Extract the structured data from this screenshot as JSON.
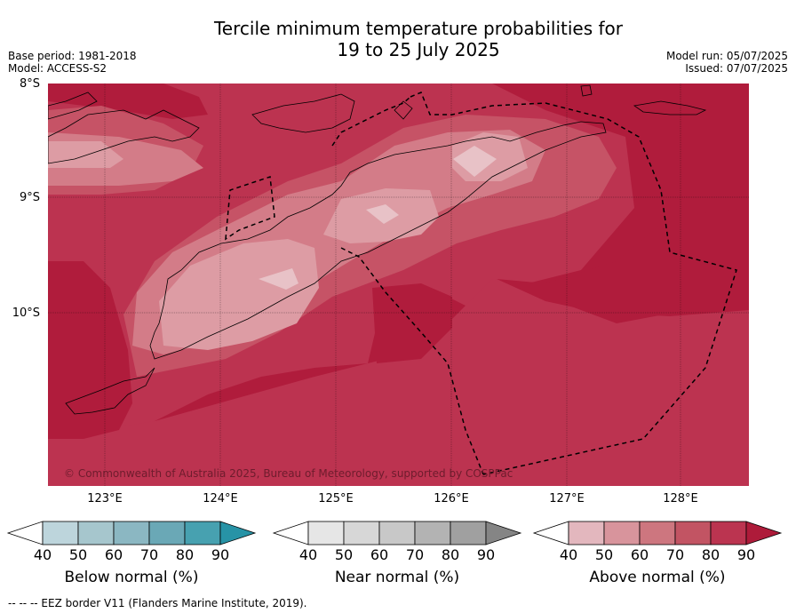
{
  "title": {
    "line1": "Tercile minimum temperature probabilities for",
    "line2": "19 to 25 July 2025"
  },
  "meta": {
    "base_period": "Base period: 1981-2018",
    "model": "Model: ACCESS-S2",
    "model_run": "Model run: 05/07/2025",
    "issued": "Issued: 07/07/2025"
  },
  "map": {
    "lat_labels": [
      "8°S",
      "9°S",
      "10°S"
    ],
    "lon_labels": [
      "123°E",
      "124°E",
      "125°E",
      "126°E",
      "127°E",
      "128°E"
    ],
    "copyright": "© Commonwealth of Australia 2025, Bureau of Meteorology, supported by COSPPac",
    "background_color": "#b01c3c",
    "shading_colors": [
      "#b01c3c",
      "#bc3350",
      "#c65366",
      "#d37c88",
      "#dd9ca4",
      "#e8c2c7"
    ]
  },
  "legend": {
    "below": {
      "label": "Below normal (%)",
      "ticks": [
        "40",
        "50",
        "60",
        "70",
        "80",
        "90"
      ],
      "colors": [
        "#ffffff",
        "#bdd5dc",
        "#a6c6cd",
        "#8bb7c2",
        "#6aa8b6",
        "#47a1b0",
        "#2793a6"
      ]
    },
    "near": {
      "label": "Near normal (%)",
      "ticks": [
        "40",
        "50",
        "60",
        "70",
        "80",
        "90"
      ],
      "colors": [
        "#ffffff",
        "#e6e6e6",
        "#d7d7d7",
        "#c8c8c8",
        "#b3b3b3",
        "#a0a0a0",
        "#858585"
      ]
    },
    "above": {
      "label": "Above normal (%)",
      "ticks": [
        "40",
        "50",
        "60",
        "70",
        "80",
        "90"
      ],
      "colors": [
        "#ffffff",
        "#e3b7be",
        "#d8949c",
        "#cd767f",
        "#c25463",
        "#bb3450",
        "#ae1b3a"
      ]
    }
  },
  "footer": "--  --  -- EEZ border V11 (Flanders Marine Institute, 2019)."
}
